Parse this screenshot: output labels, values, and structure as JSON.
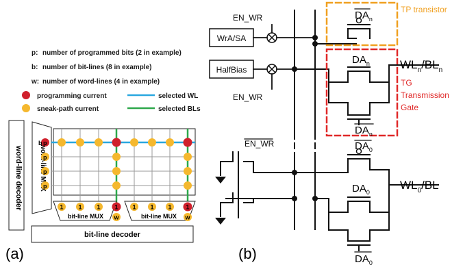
{
  "panel_a": {
    "label": "(a)",
    "legend": [
      {
        "key": "p:",
        "text": "number of programmed bits (2 in example)"
      },
      {
        "key": "b:",
        "text": "number of bit-lines (8 in example)"
      },
      {
        "key": "w:",
        "text": "number of word-lines (4 in example)"
      }
    ],
    "markers": [
      {
        "text": "programming current",
        "color": "#d0202c"
      },
      {
        "text": "sneak-path current",
        "color": "#f5b82e"
      }
    ],
    "lines": [
      {
        "text": "selected WL",
        "color": "#29a7df"
      },
      {
        "text": "selected BLs",
        "color": "#2da84a"
      }
    ],
    "word_line_decoder": "word-line decoder",
    "word_line_mux": "word-line MUX",
    "bit_line_mux": "bit-line MUX",
    "bit_line_decoder": "bit-line decoder",
    "row_labels": [
      "b",
      "p",
      "p",
      "p"
    ],
    "col_labels": [
      "1",
      "1",
      "1",
      "1",
      "1",
      "1",
      "1",
      "1"
    ],
    "w_label": "w",
    "p_label": "p"
  },
  "panel_b": {
    "label": "(b)",
    "en_wr": "EN_WR",
    "wra_sa": "WrA/SA",
    "halfbias": "HalfBias",
    "da_n": "DA",
    "da_n_sub": "n",
    "da_0": "DA",
    "da_0_sub": "0",
    "wl_n": "WL",
    "wl_n_sub": "n",
    "bl_n": "/BL",
    "bl_n_sub": "n",
    "wl_0": "WL",
    "wl_0_sub": "0",
    "bl_0": "/BL",
    "tp_title": "TP transistor",
    "tg_lines": [
      "TG",
      "Transmission",
      "Gate"
    ],
    "colors": {
      "tp": "#f0a020",
      "tg": "#e02828",
      "wire": "#111111"
    }
  }
}
